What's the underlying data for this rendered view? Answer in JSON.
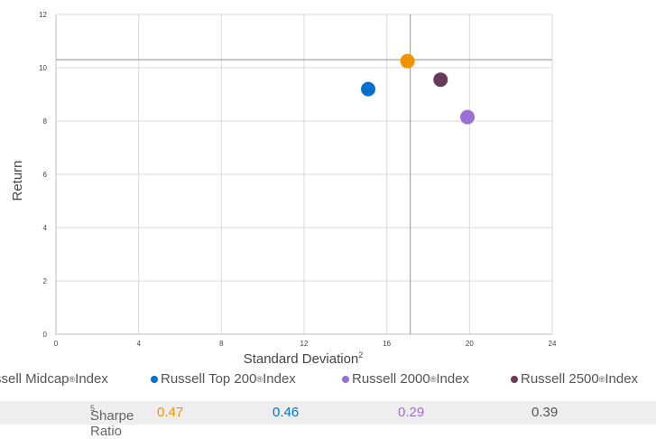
{
  "chart_data": {
    "type": "scatter",
    "xlabel": "Standard Deviation",
    "xlabel_superscript": "2",
    "ylabel": "Return",
    "xlim": [
      0,
      24
    ],
    "ylim": [
      0,
      12
    ],
    "x_ticks": [
      "0",
      "4",
      "8",
      "12",
      "16",
      "20",
      "24"
    ],
    "y_ticks": [
      "0",
      "2",
      "4",
      "6",
      "8",
      "10",
      "12"
    ],
    "grid": true,
    "reference_lines": {
      "x": 17.0,
      "y": 10.3
    },
    "series": [
      {
        "name": "Russell Midcap",
        "x": 17.0,
        "y": 10.25,
        "color": "#f39200"
      },
      {
        "name": "Russell Top 200",
        "x": 15.1,
        "y": 9.2,
        "color": "#0072ce"
      },
      {
        "name": "Russell 2000",
        "x": 19.9,
        "y": 8.15,
        "color": "#9b6fd8"
      },
      {
        "name": "Russell 2500",
        "x": 18.6,
        "y": 9.55,
        "color": "#6a3a5a"
      }
    ]
  },
  "legend": [
    {
      "text": "ssell Midcap",
      "sup": "®",
      "suffix": " Index",
      "color": "#f39200"
    },
    {
      "text": "Russell Top 200",
      "sup": "®",
      "suffix": " Index",
      "color": "#0072ce"
    },
    {
      "text": "Russell 2000",
      "sup": "®",
      "suffix": " Index",
      "color": "#9b6fd8"
    },
    {
      "text": "Russell 2500",
      "sup": "®",
      "suffix": " Index",
      "color": "#6a3a5a"
    }
  ],
  "sharpe": {
    "label": "Sharpe Ratio",
    "label_sup": "5",
    "label_suffix": ":",
    "values": [
      {
        "value": "0.47",
        "color": "#f39200"
      },
      {
        "value": "0.46",
        "color": "#0072ce"
      },
      {
        "value": "0.29",
        "color": "#9b6fd8"
      },
      {
        "value": "0.39",
        "color": "#555555"
      }
    ]
  }
}
